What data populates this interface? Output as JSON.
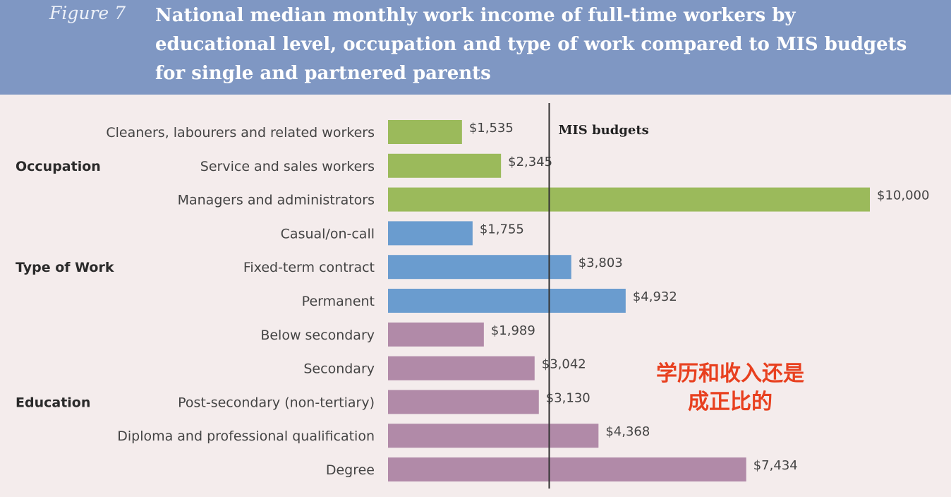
{
  "figure_label": "Figure 7",
  "title": "National median monthly work income of full-time workers by educational level, occupation and type of work compared to MIS budgets for single and partnered parents",
  "annotation": "学历和收入还是成正比的",
  "colors": {
    "header": "#7f97c3",
    "Occupation": "#9bba5b",
    "Type of Work": "#6a9ccf",
    "Education": "#b18aa8",
    "reference_line": "#333333"
  },
  "chart_data": {
    "type": "bar",
    "orientation": "horizontal",
    "title": "National median monthly work income of full-time workers by educational level, occupation and type of work compared to MIS budgets for single and partnered parents",
    "groups": [
      {
        "name": "Occupation",
        "categories": [
          "Cleaners, labourers and related workers",
          "Service and sales workers",
          "Managers and administrators"
        ],
        "values": [
          1535,
          2345,
          10000
        ]
      },
      {
        "name": "Type of Work",
        "categories": [
          "Casual/on-call",
          "Fixed-term contract",
          "Permanent"
        ],
        "values": [
          1755,
          3803,
          4932
        ]
      },
      {
        "name": "Education",
        "categories": [
          "Below secondary",
          "Secondary",
          "Post-secondary (non-tertiary)",
          "Diploma and professional qualification",
          "Degree"
        ],
        "values": [
          1989,
          3042,
          3130,
          4368,
          7434
        ]
      }
    ],
    "value_labels": [
      "$1,535",
      "$2,345",
      "$10,000",
      "$1,755",
      "$3,803",
      "$4,932",
      "$1,989",
      "$3,042",
      "$3,130",
      "$4,368",
      "$7,434"
    ],
    "reference_line": {
      "label": "MIS budgets",
      "value": 3345
    },
    "xlim": [
      0,
      10000
    ],
    "grid": false
  }
}
